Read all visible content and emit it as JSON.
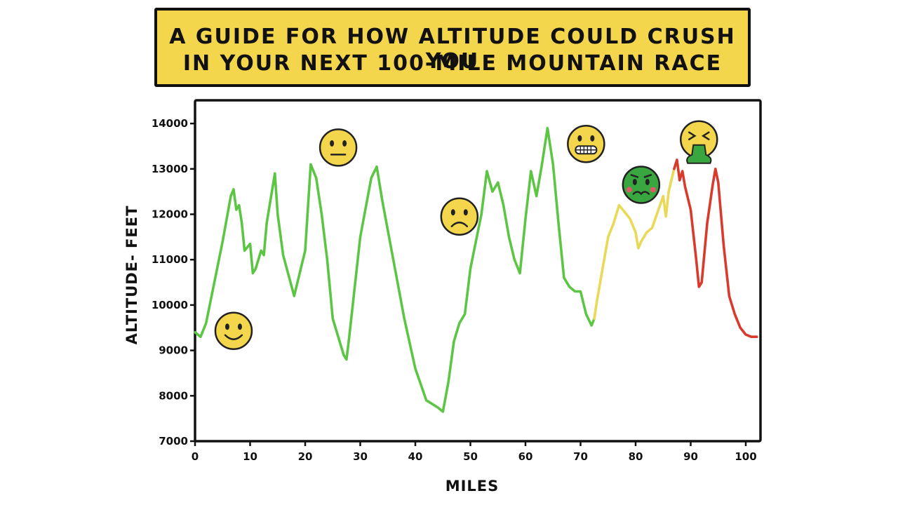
{
  "title": {
    "line1": "A GUIDE FOR HOW ALTITUDE COULD CRUSH YOU",
    "line2": "IN YOUR NEXT 100-MILE MOUNTAIN RACE"
  },
  "colors": {
    "title_background": "#f3d64b",
    "green_segment": "#5cc644",
    "yellow_segment": "#ead957",
    "red_segment": "#d93a2b",
    "emoji_yellow": "#f3d64b",
    "emoji_green": "#3aa640"
  },
  "chart_data": {
    "type": "line",
    "xlabel": "MILES",
    "ylabel": "ALTITUDE- FEET",
    "xlim": [
      0,
      102
    ],
    "ylim": [
      7000,
      14500
    ],
    "x_ticks": [
      0,
      10,
      20,
      30,
      40,
      50,
      60,
      70,
      80,
      90,
      100
    ],
    "y_ticks": [
      7000,
      8000,
      9000,
      10000,
      11000,
      12000,
      13000,
      14000
    ],
    "grid": false,
    "series": [
      {
        "color": "#5cc644",
        "x": [
          0,
          1,
          2,
          3,
          5,
          6.5,
          7,
          7.5,
          8,
          8.5,
          9,
          10,
          10.5,
          11,
          12,
          12.5,
          13,
          14.5,
          15,
          16,
          18,
          20,
          21,
          22,
          23,
          24,
          25,
          26,
          27,
          27.5,
          28,
          30,
          32,
          33,
          34,
          36,
          38,
          40,
          42,
          44,
          45,
          46,
          47,
          48,
          49,
          50,
          51,
          52,
          53,
          54,
          55,
          56,
          57,
          58,
          59,
          60,
          61,
          62,
          63,
          64,
          65,
          66,
          67,
          68,
          69,
          70,
          71,
          72,
          72.5
        ],
        "values": [
          9400,
          9300,
          9600,
          10200,
          11400,
          12400,
          12550,
          12100,
          12200,
          11800,
          11200,
          11350,
          10700,
          10800,
          11200,
          11100,
          11800,
          12900,
          12000,
          11100,
          10200,
          11200,
          13100,
          12800,
          12000,
          11000,
          9700,
          9300,
          8900,
          8800,
          9300,
          11500,
          12800,
          13050,
          12300,
          11000,
          9700,
          8600,
          7900,
          7750,
          7650,
          8300,
          9200,
          9600,
          9800,
          10800,
          11400,
          12000,
          12950,
          12500,
          12700,
          12200,
          11500,
          11000,
          10700,
          11900,
          12950,
          12400,
          13100,
          13900,
          13100,
          11800,
          10600,
          10400,
          10300,
          10300,
          9800,
          9550,
          9700
        ]
      },
      {
        "color": "#ead957",
        "x": [
          72.5,
          73,
          74,
          75,
          76,
          77,
          78,
          79,
          80,
          80.5,
          81,
          82,
          83,
          84,
          85,
          85.5,
          86,
          87
        ],
        "values": [
          9700,
          10100,
          10800,
          11500,
          11800,
          12200,
          12050,
          11900,
          11600,
          11250,
          11400,
          11600,
          11700,
          12050,
          12400,
          11950,
          12500,
          13000
        ]
      },
      {
        "color": "#d93a2b",
        "x": [
          87,
          87.5,
          88,
          88.5,
          89,
          90,
          91,
          91.5,
          92,
          93,
          94,
          94.5,
          95,
          96,
          97,
          98,
          99,
          100,
          101,
          102
        ],
        "values": [
          13000,
          13200,
          12750,
          12950,
          12600,
          12100,
          11000,
          10400,
          10500,
          11800,
          12650,
          13000,
          12700,
          11300,
          10200,
          9800,
          9500,
          9350,
          9300,
          9300
        ]
      }
    ]
  },
  "emojis": [
    {
      "name": "smiling-face-icon",
      "mood": "happy",
      "x": 7,
      "y": 9430,
      "color": "#f3d64b"
    },
    {
      "name": "neutral-face-icon",
      "mood": "neutral",
      "x": 26,
      "y": 13470,
      "color": "#f3d64b"
    },
    {
      "name": "frowning-face-icon",
      "mood": "sad",
      "x": 48,
      "y": 11950,
      "color": "#f3d64b"
    },
    {
      "name": "grimacing-face-icon",
      "mood": "grimace",
      "x": 71,
      "y": 13550,
      "color": "#f3d64b"
    },
    {
      "name": "nauseated-face-icon",
      "mood": "nauseated",
      "x": 81,
      "y": 12650,
      "color": "#3aa640"
    },
    {
      "name": "vomiting-face-icon",
      "mood": "vomiting",
      "x": 91.5,
      "y": 13650,
      "color": "#f3d64b"
    }
  ]
}
